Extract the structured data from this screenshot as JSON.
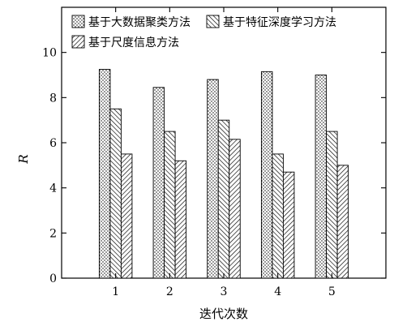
{
  "chart_data": {
    "type": "bar",
    "categories": [
      "1",
      "2",
      "3",
      "4",
      "5"
    ],
    "series": [
      {
        "name": "基于大数据聚类方法",
        "pattern": "dots",
        "values": [
          9.25,
          8.45,
          8.8,
          9.15,
          9.0
        ]
      },
      {
        "name": "基于特征深度学习方法",
        "pattern": "hatch-right",
        "values": [
          7.5,
          6.5,
          7.0,
          5.5,
          6.5
        ]
      },
      {
        "name": "基于尺度信息方法",
        "pattern": "hatch-left",
        "values": [
          5.5,
          5.2,
          6.15,
          4.7,
          5.0
        ]
      }
    ],
    "xlabel": "迭代次数",
    "ylabel": "R",
    "ylim": [
      0,
      12
    ],
    "yticks": [
      0,
      2,
      4,
      6,
      8,
      10
    ],
    "xlim": [
      0,
      6
    ],
    "grid": false,
    "legend_position": "top"
  }
}
